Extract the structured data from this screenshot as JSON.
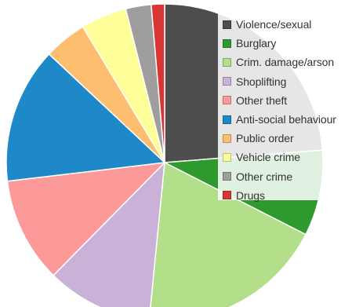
{
  "chart_data": {
    "type": "pie",
    "title": "",
    "legend_position": "top-right",
    "slices": [
      {
        "label": "Violence/sexual",
        "value": 22.8,
        "color": "#4d4d4d"
      },
      {
        "label": "Burglary",
        "value": 8.4,
        "color": "#2e9a2e"
      },
      {
        "label": "Crim. damage/arson",
        "value": 18.3,
        "color": "#b3de8a"
      },
      {
        "label": "Shoplifting",
        "value": 10.4,
        "color": "#c9b1d8"
      },
      {
        "label": "Other theft",
        "value": 10.3,
        "color": "#fb9a99"
      },
      {
        "label": "Anti-social behaviour",
        "value": 13.3,
        "color": "#1f88c8"
      },
      {
        "label": "Public order",
        "value": 4.2,
        "color": "#fdbf6f"
      },
      {
        "label": "Vehicle crime",
        "value": 4.5,
        "color": "#ffff99"
      },
      {
        "label": "Other crime",
        "value": 2.5,
        "color": "#9e9e9e"
      },
      {
        "label": "Drugs",
        "value": 1.3,
        "color": "#d83636"
      }
    ]
  }
}
